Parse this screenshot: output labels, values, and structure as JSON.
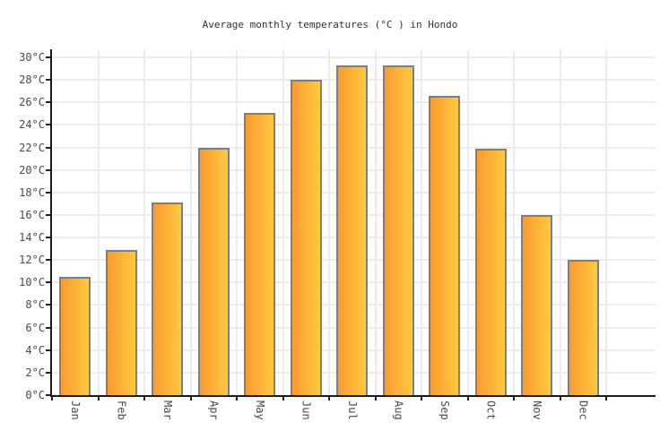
{
  "chart_data": {
    "type": "bar",
    "title": "Average monthly temperatures (°C ) in Hondo",
    "categories": [
      "Jan",
      "Feb",
      "Mar",
      "Apr",
      "May",
      "Jun",
      "Jul",
      "Aug",
      "Sep",
      "Oct",
      "Nov",
      "Dec"
    ],
    "values": [
      10.5,
      12.9,
      17.1,
      22.0,
      25.1,
      28.0,
      29.3,
      29.3,
      26.6,
      21.9,
      16.0,
      12.0
    ],
    "xlabel": "",
    "ylabel": "",
    "y_unit": "°C",
    "ylim": [
      0,
      30.9
    ],
    "ytick_step": 2,
    "ytick_max": 30,
    "grid": true,
    "legend": false,
    "bar_style": {
      "gradient_left": "#FA9B31",
      "gradient_right": "#FFC93E",
      "border": "#7E7E7E"
    },
    "colors": {
      "background": "#FFFFFF",
      "gridline": "#ECECEC",
      "axis": "#1A1A1A",
      "tick": "#222222",
      "label_text": "#4A4A4A",
      "title_text": "#333333"
    }
  }
}
